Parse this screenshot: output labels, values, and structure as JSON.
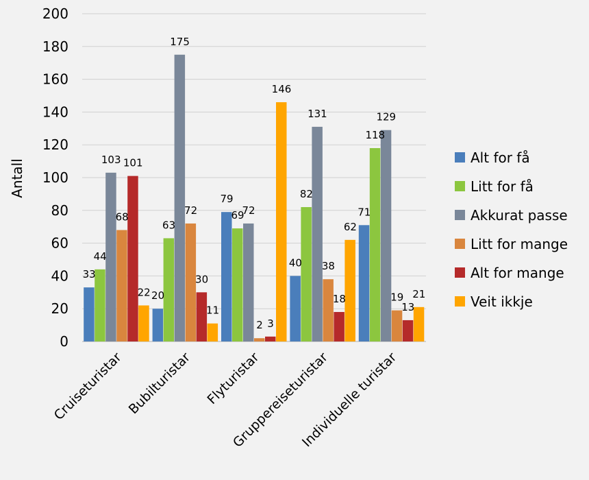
{
  "chart_data": {
    "type": "bar",
    "title": "",
    "xlabel": "",
    "ylabel": "Antall",
    "ylim": [
      0,
      200
    ],
    "yticks": [
      0,
      20,
      40,
      60,
      80,
      100,
      120,
      140,
      160,
      180,
      200
    ],
    "grid": true,
    "legend_position": "right",
    "categories": [
      "Cruiseturistar",
      "Bubilturistar",
      "Flyturistar",
      "Gruppereiseturistar",
      "Individuelle turistar"
    ],
    "series": [
      {
        "name": "Alt for få",
        "color": "#4a7ebb",
        "values": [
          33,
          20,
          79,
          40,
          71
        ]
      },
      {
        "name": "Litt for få",
        "color": "#8cc63f",
        "values": [
          44,
          63,
          69,
          82,
          118
        ]
      },
      {
        "name": "Akkurat passe",
        "color": "#7a8799",
        "values": [
          103,
          175,
          72,
          131,
          129
        ]
      },
      {
        "name": "Litt for mange",
        "color": "#d9863e",
        "values": [
          68,
          72,
          2,
          38,
          19
        ]
      },
      {
        "name": "Alt for mange",
        "color": "#b52a2a",
        "values": [
          101,
          30,
          3,
          18,
          13
        ]
      },
      {
        "name": "Veit ikkje",
        "color": "#ffa500",
        "values": [
          22,
          11,
          146,
          62,
          21
        ]
      }
    ]
  }
}
